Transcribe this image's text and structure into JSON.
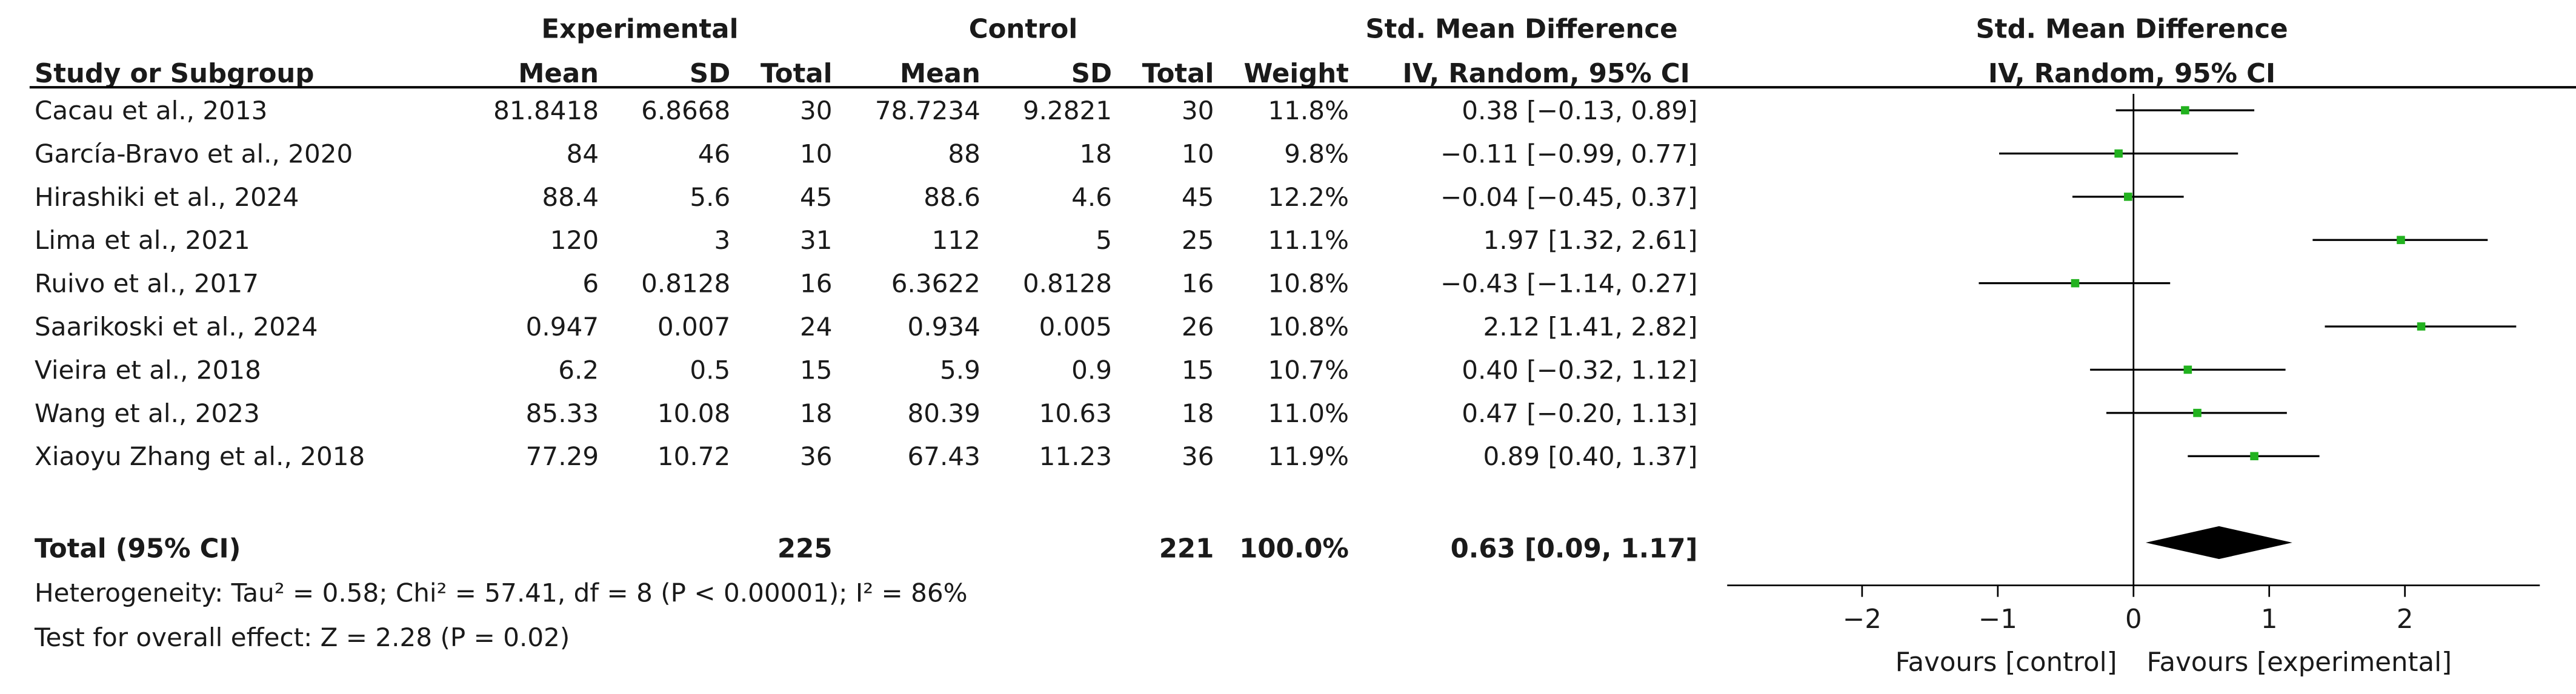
{
  "chart_data": {
    "type": "forest",
    "headers": {
      "experimental": "Experimental",
      "control": "Control",
      "smd_table": "Std. Mean Difference",
      "smd_plot": "Std. Mean Difference",
      "study": "Study or Subgroup",
      "mean_e": "Mean",
      "sd_e": "SD",
      "total_e": "Total",
      "mean_c": "Mean",
      "sd_c": "SD",
      "total_c": "Total",
      "weight": "Weight",
      "method_table": "IV, Random, 95% CI",
      "method_plot": "IV, Random, 95% CI"
    },
    "studies": [
      {
        "name": "Cacau et al., 2013",
        "mean_e": "81.8418",
        "sd_e": "6.8668",
        "n_e": "30",
        "mean_c": "78.7234",
        "sd_c": "9.2821",
        "n_c": "30",
        "weight": "11.8%",
        "ci_text": "0.38 [−0.13, 0.89]",
        "smd": 0.38,
        "lo": -0.13,
        "hi": 0.89
      },
      {
        "name": "García-Bravo et al., 2020",
        "mean_e": "84",
        "sd_e": "46",
        "n_e": "10",
        "mean_c": "88",
        "sd_c": "18",
        "n_c": "10",
        "weight": "9.8%",
        "ci_text": "−0.11 [−0.99, 0.77]",
        "smd": -0.11,
        "lo": -0.99,
        "hi": 0.77
      },
      {
        "name": "Hirashiki et al., 2024",
        "mean_e": "88.4",
        "sd_e": "5.6",
        "n_e": "45",
        "mean_c": "88.6",
        "sd_c": "4.6",
        "n_c": "45",
        "weight": "12.2%",
        "ci_text": "−0.04 [−0.45, 0.37]",
        "smd": -0.04,
        "lo": -0.45,
        "hi": 0.37
      },
      {
        "name": "Lima et al., 2021",
        "mean_e": "120",
        "sd_e": "3",
        "n_e": "31",
        "mean_c": "112",
        "sd_c": "5",
        "n_c": "25",
        "weight": "11.1%",
        "ci_text": "1.97 [1.32, 2.61]",
        "smd": 1.97,
        "lo": 1.32,
        "hi": 2.61
      },
      {
        "name": "Ruivo et al., 2017",
        "mean_e": "6",
        "sd_e": "0.8128",
        "n_e": "16",
        "mean_c": "6.3622",
        "sd_c": "0.8128",
        "n_c": "16",
        "weight": "10.8%",
        "ci_text": "−0.43 [−1.14, 0.27]",
        "smd": -0.43,
        "lo": -1.14,
        "hi": 0.27
      },
      {
        "name": "Saarikoski et al., 2024",
        "mean_e": "0.947",
        "sd_e": "0.007",
        "n_e": "24",
        "mean_c": "0.934",
        "sd_c": "0.005",
        "n_c": "26",
        "weight": "10.8%",
        "ci_text": "2.12 [1.41, 2.82]",
        "smd": 2.12,
        "lo": 1.41,
        "hi": 2.82
      },
      {
        "name": "Vieira et al., 2018",
        "mean_e": "6.2",
        "sd_e": "0.5",
        "n_e": "15",
        "mean_c": "5.9",
        "sd_c": "0.9",
        "n_c": "15",
        "weight": "10.7%",
        "ci_text": "0.40 [−0.32, 1.12]",
        "smd": 0.4,
        "lo": -0.32,
        "hi": 1.12
      },
      {
        "name": "Wang et al., 2023",
        "mean_e": "85.33",
        "sd_e": "10.08",
        "n_e": "18",
        "mean_c": "80.39",
        "sd_c": "10.63",
        "n_c": "18",
        "weight": "11.0%",
        "ci_text": "0.47 [−0.20, 1.13]",
        "smd": 0.47,
        "lo": -0.2,
        "hi": 1.13
      },
      {
        "name": "Xiaoyu Zhang et al., 2018",
        "mean_e": "77.29",
        "sd_e": "10.72",
        "n_e": "36",
        "mean_c": "67.43",
        "sd_c": "11.23",
        "n_c": "36",
        "weight": "11.9%",
        "ci_text": "0.89 [0.40, 1.37]",
        "smd": 0.89,
        "lo": 0.4,
        "hi": 1.37
      }
    ],
    "total": {
      "label": "Total (95% CI)",
      "n_e": "225",
      "n_c": "221",
      "weight": "100.0%",
      "ci_text": "0.63 [0.09, 1.17]",
      "smd": 0.63,
      "lo": 0.09,
      "hi": 1.17
    },
    "heterogeneity": "Heterogeneity: Tau² = 0.58; Chi² = 57.41, df = 8 (P < 0.00001); I² = 86%",
    "overall_effect": "Test for overall effect: Z = 2.28 (P = 0.02)",
    "x_ticks": [
      -2,
      -1,
      0,
      1,
      2
    ],
    "x_tick_labels": [
      "−2",
      "−1",
      "0",
      "1",
      "2"
    ],
    "xlim": [
      -3,
      3
    ],
    "favours_left": "Favours [control]",
    "favours_right": "Favours [experimental]",
    "colors": {
      "marker": "#22b21f",
      "diamond": "#000000",
      "line": "#000000"
    }
  }
}
